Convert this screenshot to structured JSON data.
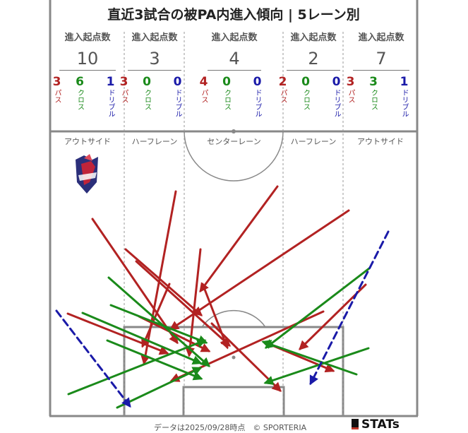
{
  "title": "直近3試合の被PA内進入傾向 | 5レーン別",
  "header_label": "進入起点数",
  "type_labels": {
    "pass": "パス",
    "cross": "クロス",
    "dribble": "ドリブル"
  },
  "colors": {
    "pass": "#b22222",
    "cross": "#1a8a1a",
    "dribble": "#1a1aa8",
    "pitch_line": "#888888"
  },
  "lanes": [
    {
      "name": "アウトサイド",
      "total": "10",
      "pass": "3",
      "cross": "6",
      "dribble": "1"
    },
    {
      "name": "ハーフレーン",
      "total": "3",
      "pass": "3",
      "cross": "0",
      "dribble": "0"
    },
    {
      "name": "センターレーン",
      "total": "4",
      "pass": "4",
      "cross": "0",
      "dribble": "0"
    },
    {
      "name": "ハーフレーン",
      "total": "2",
      "pass": "2",
      "cross": "0",
      "dribble": "0"
    },
    {
      "name": "アウトサイド",
      "total": "7",
      "pass": "3",
      "cross": "3",
      "dribble": "1"
    }
  ],
  "logo_icon": "club-crest-icon",
  "footer": "データは2025/09/28時点　© SPORTERIA",
  "brand": "STATs"
}
